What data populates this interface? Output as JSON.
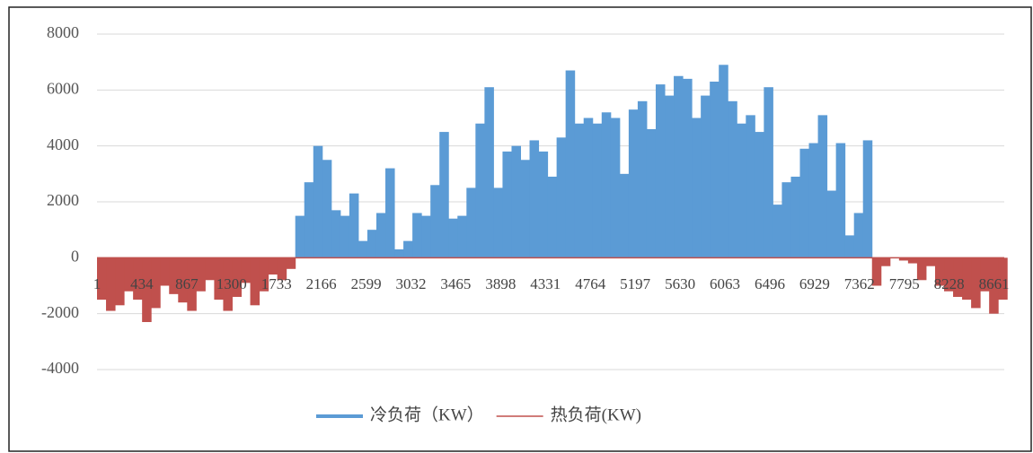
{
  "chart_data": {
    "type": "bar",
    "x": [
      1,
      88,
      175,
      262,
      349,
      436,
      523,
      610,
      697,
      784,
      871,
      958,
      1045,
      1132,
      1219,
      1306,
      1393,
      1480,
      1567,
      1654,
      1741,
      1828,
      1915,
      2002,
      2089,
      2176,
      2263,
      2350,
      2437,
      2524,
      2611,
      2698,
      2785,
      2872,
      2959,
      3046,
      3133,
      3220,
      3307,
      3394,
      3481,
      3568,
      3655,
      3742,
      3829,
      3916,
      4003,
      4090,
      4177,
      4264,
      4351,
      4438,
      4525,
      4612,
      4699,
      4786,
      4873,
      4960,
      5047,
      5134,
      5221,
      5308,
      5395,
      5482,
      5569,
      5656,
      5743,
      5830,
      5917,
      6004,
      6091,
      6178,
      6265,
      6352,
      6439,
      6526,
      6613,
      6700,
      6787,
      6874,
      6961,
      7048,
      7135,
      7222,
      7309,
      7396,
      7483,
      7570,
      7657,
      7744,
      7831,
      7918,
      8005,
      8092,
      8179,
      8266,
      8353,
      8440,
      8527,
      8614,
      8701
    ],
    "series": [
      {
        "name": "冷负荷（KW）",
        "color": "#5b9bd5",
        "values": [
          0,
          0,
          0,
          0,
          0,
          0,
          0,
          0,
          0,
          0,
          0,
          0,
          0,
          0,
          0,
          0,
          0,
          0,
          0,
          0,
          0,
          0,
          1500,
          2700,
          4000,
          3500,
          1700,
          1500,
          2300,
          600,
          1000,
          1600,
          3200,
          300,
          600,
          1600,
          1500,
          2600,
          4500,
          1400,
          1500,
          2500,
          4800,
          6100,
          2500,
          3800,
          4000,
          3500,
          4200,
          3800,
          2900,
          4300,
          6700,
          4800,
          5000,
          4800,
          5200,
          5000,
          3000,
          5300,
          5600,
          4600,
          6200,
          5800,
          6500,
          6400,
          5000,
          5800,
          6300,
          6900,
          5600,
          4800,
          5100,
          4500,
          6100,
          1900,
          2700,
          2900,
          3900,
          4100,
          5100,
          2400,
          4100,
          800,
          1600,
          4200,
          0,
          0,
          0,
          0,
          0,
          0,
          0,
          0,
          0,
          0,
          0,
          0,
          0,
          0,
          0
        ]
      },
      {
        "name": "热负荷(KW)",
        "color": "#c0504d",
        "values": [
          -1500,
          -1900,
          -1700,
          -1200,
          -1500,
          -2300,
          -1800,
          -1000,
          -1300,
          -1600,
          -1900,
          -1200,
          -800,
          -1500,
          -1900,
          -1400,
          -900,
          -1700,
          -1200,
          -600,
          -800,
          -400,
          0,
          0,
          0,
          0,
          0,
          0,
          0,
          0,
          0,
          0,
          0,
          0,
          0,
          0,
          0,
          0,
          0,
          0,
          0,
          0,
          0,
          0,
          0,
          0,
          0,
          0,
          0,
          0,
          0,
          0,
          0,
          0,
          0,
          0,
          0,
          0,
          0,
          0,
          0,
          0,
          0,
          0,
          0,
          0,
          0,
          0,
          0,
          0,
          0,
          0,
          0,
          0,
          0,
          0,
          0,
          0,
          0,
          0,
          0,
          0,
          0,
          0,
          0,
          0,
          -1000,
          -300,
          0,
          -100,
          -200,
          -800,
          -300,
          -1000,
          -1200,
          -1400,
          -1500,
          -1800,
          -1200,
          -2000,
          -1500
        ]
      }
    ],
    "xlim": [
      1,
      8760
    ],
    "xticks": [
      1,
      434,
      867,
      1300,
      1733,
      2166,
      2599,
      3032,
      3465,
      3898,
      4331,
      4764,
      5197,
      5630,
      6063,
      6496,
      6929,
      7362,
      7795,
      8228,
      8661
    ],
    "ylim": [
      -4000,
      8000
    ],
    "yticks": [
      -4000,
      -2000,
      0,
      2000,
      4000,
      6000,
      8000
    ],
    "grid": true,
    "legend": "bottom"
  }
}
